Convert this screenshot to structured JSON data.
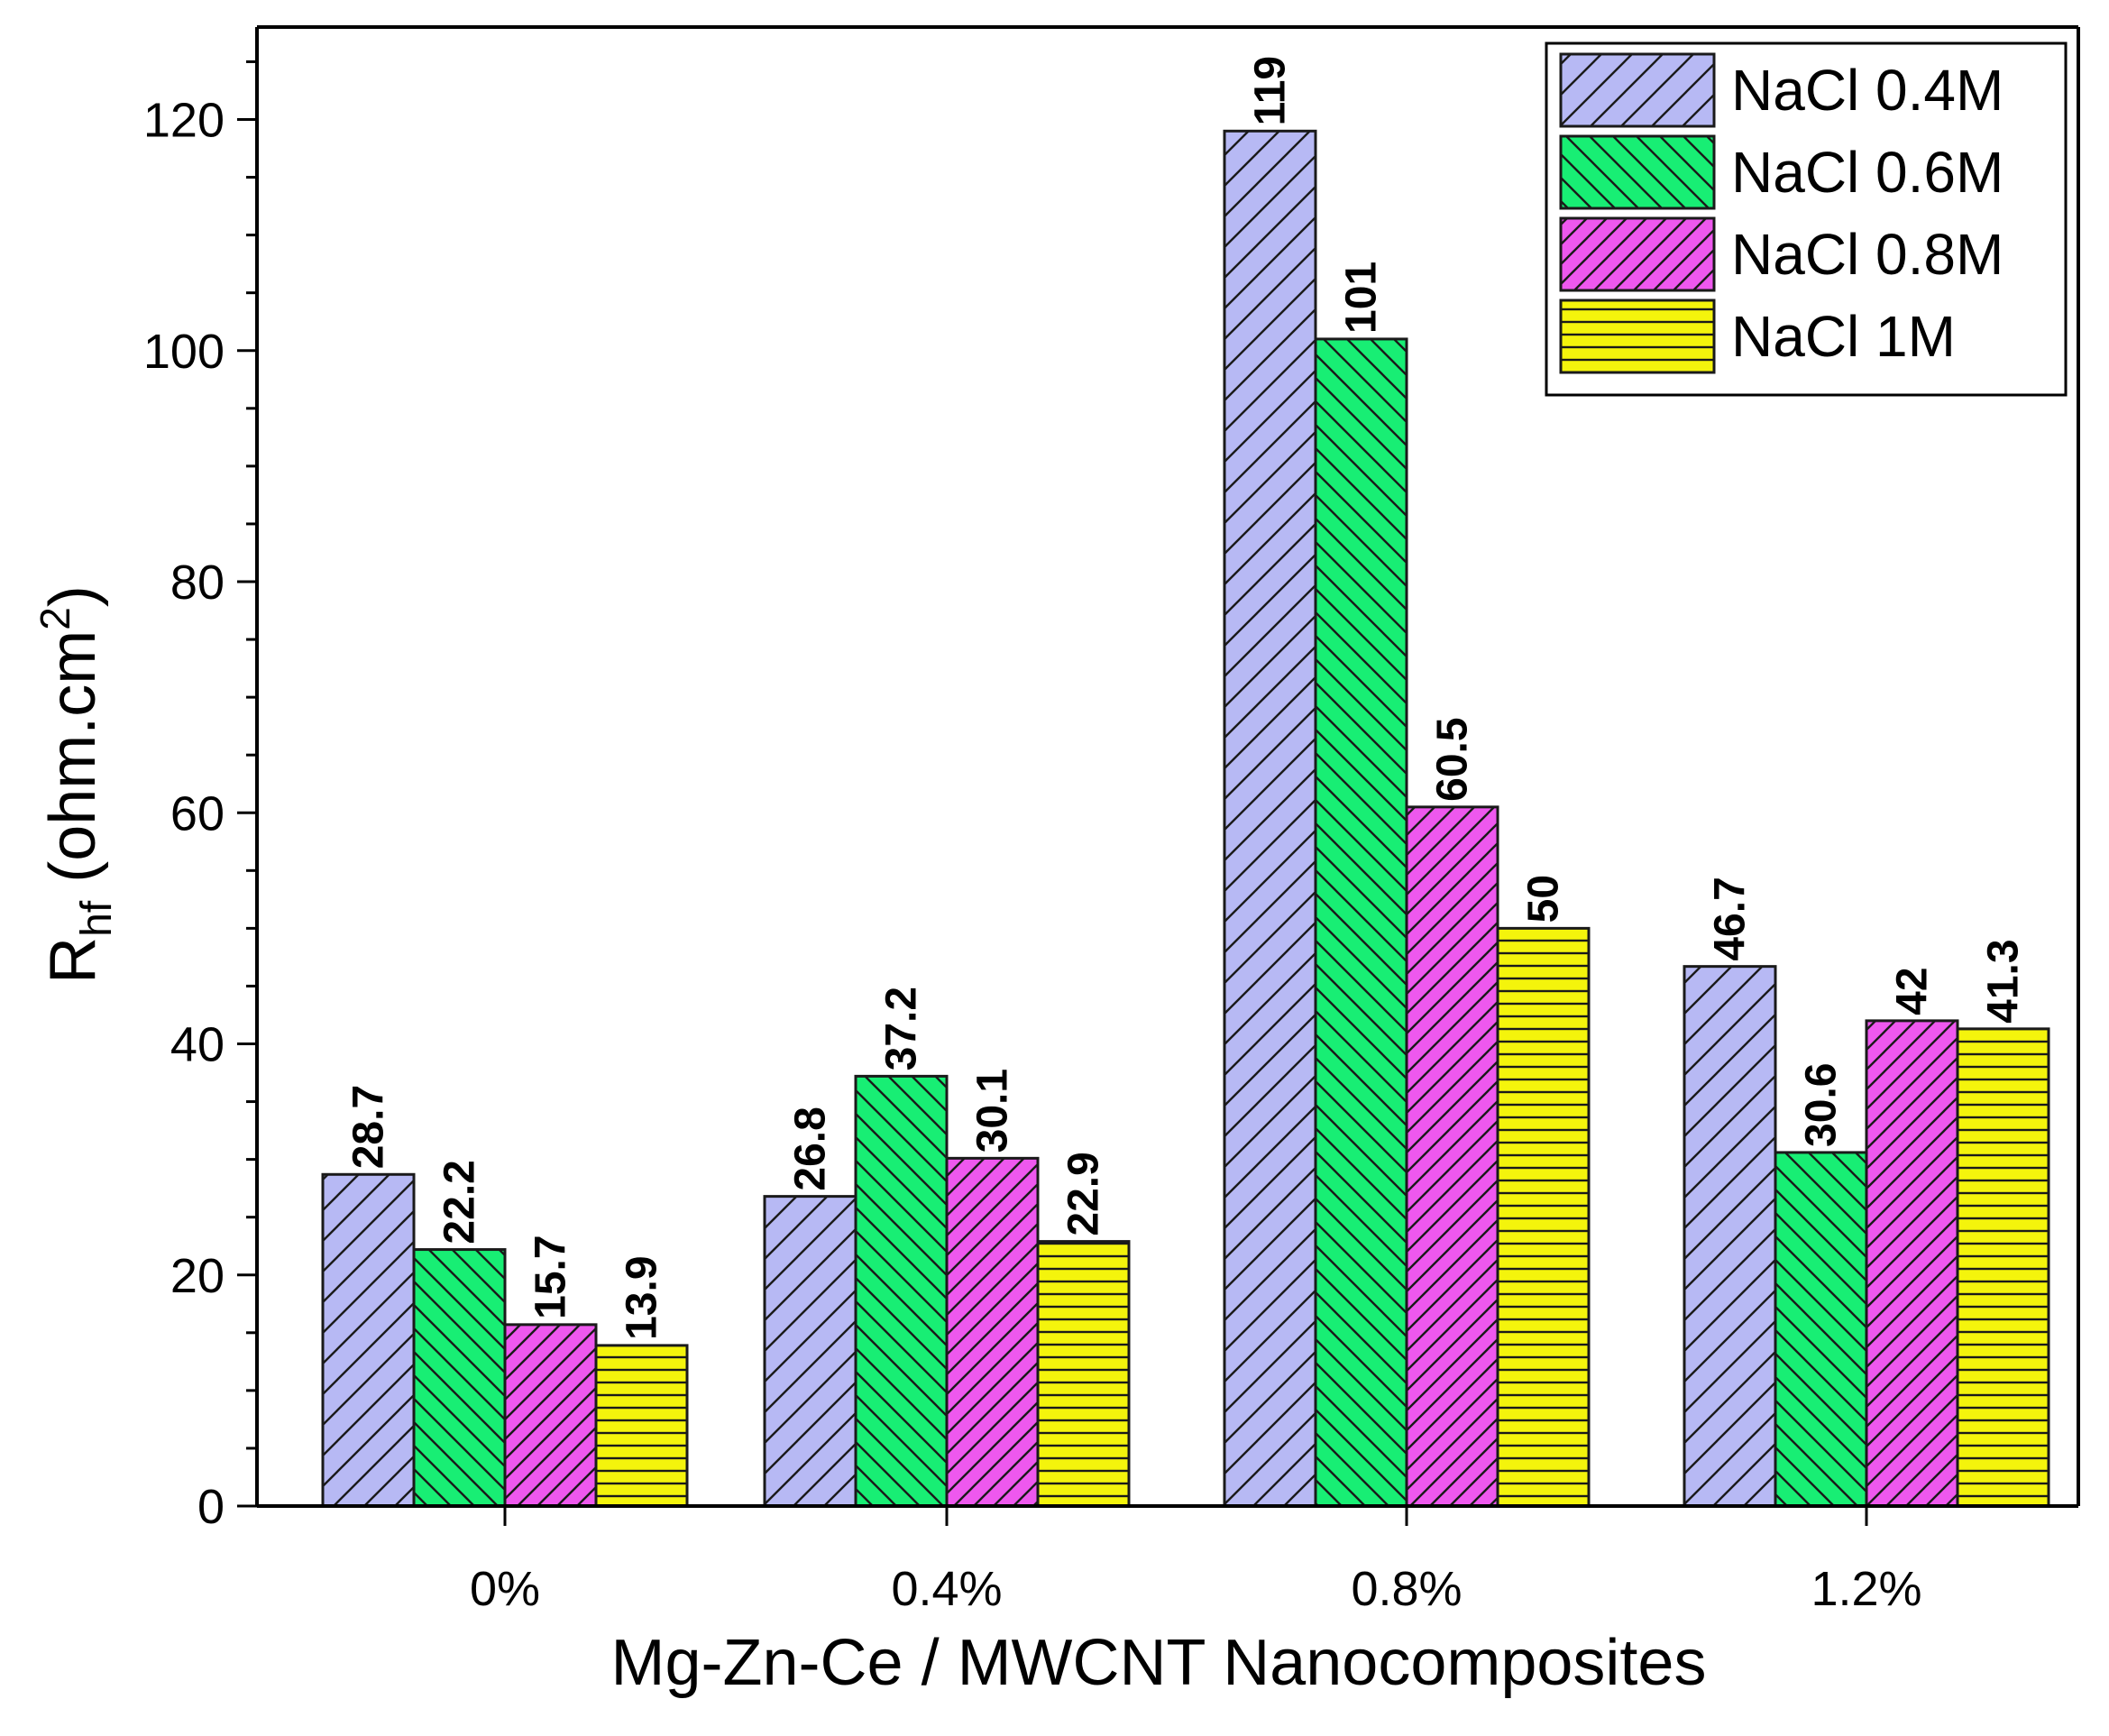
{
  "chart_data": {
    "type": "bar",
    "title": "",
    "xlabel": "Mg-Zn-Ce / MWCNT Nanocomposites",
    "ylabel": {
      "main": "R",
      "sub": "hf",
      "units_prefix": "(ohm.cm",
      "sup": "2",
      "units_suffix": ")"
    },
    "categories": [
      "0%",
      "0.4%",
      "0.8%",
      "1.2%"
    ],
    "ylim": [
      0,
      128
    ],
    "yticks": [
      0,
      20,
      40,
      60,
      80,
      100,
      120
    ],
    "ytick_labels": [
      "0",
      "20",
      "40",
      "60",
      "80",
      "100",
      "120"
    ],
    "grid": false,
    "legend_position": "top-right",
    "series": [
      {
        "name": "NaCl 0.4M",
        "values": [
          28.7,
          26.8,
          119,
          46.7
        ],
        "labels": [
          "28.7",
          "26.8",
          "119",
          "46.7"
        ],
        "color": "#b7b9f4",
        "pattern": "diag-up"
      },
      {
        "name": "NaCl 0.6M",
        "values": [
          22.2,
          37.2,
          101,
          30.6
        ],
        "labels": [
          "22.2",
          "37.2",
          "101",
          "30.6"
        ],
        "color": "#18ee74",
        "pattern": "diag-down"
      },
      {
        "name": "NaCl 0.8M",
        "values": [
          15.7,
          30.1,
          60.5,
          42
        ],
        "labels": [
          "15.7",
          "30.1",
          "60.5",
          "42"
        ],
        "color": "#ee58ee",
        "pattern": "diag-up-dense"
      },
      {
        "name": "NaCl 1M",
        "values": [
          13.9,
          22.9,
          50,
          41.3
        ],
        "labels": [
          "13.9",
          "22.9",
          "50",
          "41.3"
        ],
        "color": "#f4f40c",
        "pattern": "horizontal"
      }
    ]
  }
}
